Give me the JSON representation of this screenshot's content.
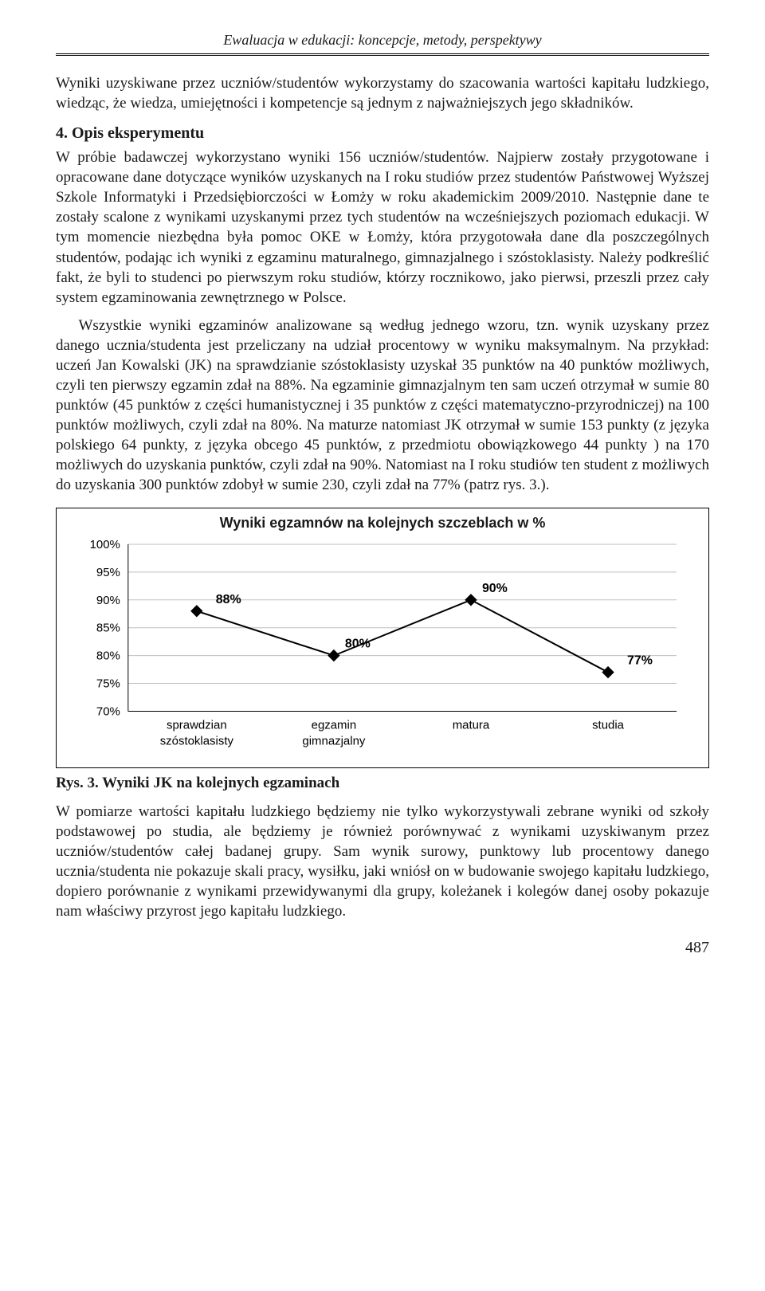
{
  "running_head": "Ewaluacja w edukacji: koncepcje, metody, perspektywy",
  "paragraphs": {
    "p1": "Wyniki uzyskiwane przez uczniów/studentów wykorzystamy do szacowania wartości kapitału ludzkiego, wiedząc, że wiedza, umiejętności i kompetencje są jednym z najważniejszych jego składników.",
    "sec4": "4. Opis eksperymentu",
    "p2": "W próbie badawczej wykorzystano wyniki 156 uczniów/studentów. Najpierw zostały przygotowane i opracowane dane dotyczące wyników uzyskanych na I roku studiów przez studentów Państwowej Wyższej Szkole Informatyki i Przedsiębiorczości w Łomży w roku akademickim 2009/2010. Następnie dane te zostały scalone z wynikami uzyskanymi przez tych studentów na wcześniejszych poziomach edukacji. W tym momencie niezbędna była pomoc OKE w Łomży, która przygotowała dane dla poszczególnych studentów, podając ich wyniki z egzaminu maturalnego, gimnazjalnego i szóstoklasisty. Należy podkreślić fakt, że byli to studenci po pierwszym roku studiów, którzy rocznikowo, jako pierwsi, przeszli przez cały system egzaminowania zewnętrznego w Polsce.",
    "p3": "Wszystkie wyniki egzaminów analizowane są według jednego wzoru, tzn. wynik uzyskany przez danego ucznia/studenta jest przeliczany na udział procentowy w wyniku maksymalnym. Na przykład: uczeń Jan Kowalski (JK) na sprawdzianie szóstoklasisty uzyskał 35 punktów na 40 punktów możliwych, czyli ten pierwszy egzamin zdał na 88%. Na egzaminie gimnazjalnym ten sam uczeń otrzymał w sumie 80 punktów (45 punktów z części humanistycznej i 35 punktów z części matematyczno-przyrodniczej) na 100 punktów możliwych, czyli zdał na 80%. Na maturze natomiast JK otrzymał w sumie 153 punkty (z języka polskiego 64 punkty, z języka obcego 45 punktów, z przedmiotu obowiązkowego 44 punkty ) na 170 możliwych do uzyskania punktów, czyli zdał na 90%. Natomiast na I roku studiów ten student z możliwych do uzyskania 300 punktów zdobył w sumie 230, czyli zdał na 77% (patrz rys. 3.).",
    "p4": "W pomiarze wartości kapitału ludzkiego będziemy nie tylko wykorzystywali zebrane wyniki od szkoły podstawowej po studia, ale będziemy je również porównywać z wynikami uzyskiwanym przez uczniów/studentów całej badanej grupy. Sam wynik surowy, punktowy lub procentowy danego ucznia/studenta nie pokazuje skali pracy, wysiłku, jaki wniósł on w budowanie swojego kapitału ludzkiego, dopiero porównanie z wynikami przewidywanymi dla grupy, koleżanek i kolegów danej osoby pokazuje nam właściwy przyrost jego kapitału ludzkiego."
  },
  "chart": {
    "type": "line",
    "title": "Wyniki egzamnów na kolejnych szczeblach w %",
    "categories": [
      "sprawdzian szóstoklasisty",
      "egzamin gimnazjalny",
      "matura",
      "studia"
    ],
    "values": [
      88,
      80,
      90,
      77
    ],
    "point_labels": [
      "88%",
      "80%",
      "90%",
      "77%"
    ],
    "ylim": [
      70,
      100
    ],
    "ytick_step": 5,
    "ytick_labels": [
      "70%",
      "75%",
      "80%",
      "85%",
      "90%",
      "95%",
      "100%"
    ],
    "line_color": "#000000",
    "marker_fill": "#000000",
    "marker_stroke": "#000000",
    "marker_shape": "diamond",
    "marker_size": 7,
    "line_width": 2,
    "grid_color": "#bfbfbf",
    "background_color": "#ffffff",
    "axis_color": "#000000",
    "axis_font": "Arial",
    "axis_fontsize": 15,
    "label_fontsize": 16,
    "title_fontsize": 18
  },
  "fig_caption": "Rys. 3. Wyniki JK na kolejnych egzaminach",
  "page_number": "487"
}
